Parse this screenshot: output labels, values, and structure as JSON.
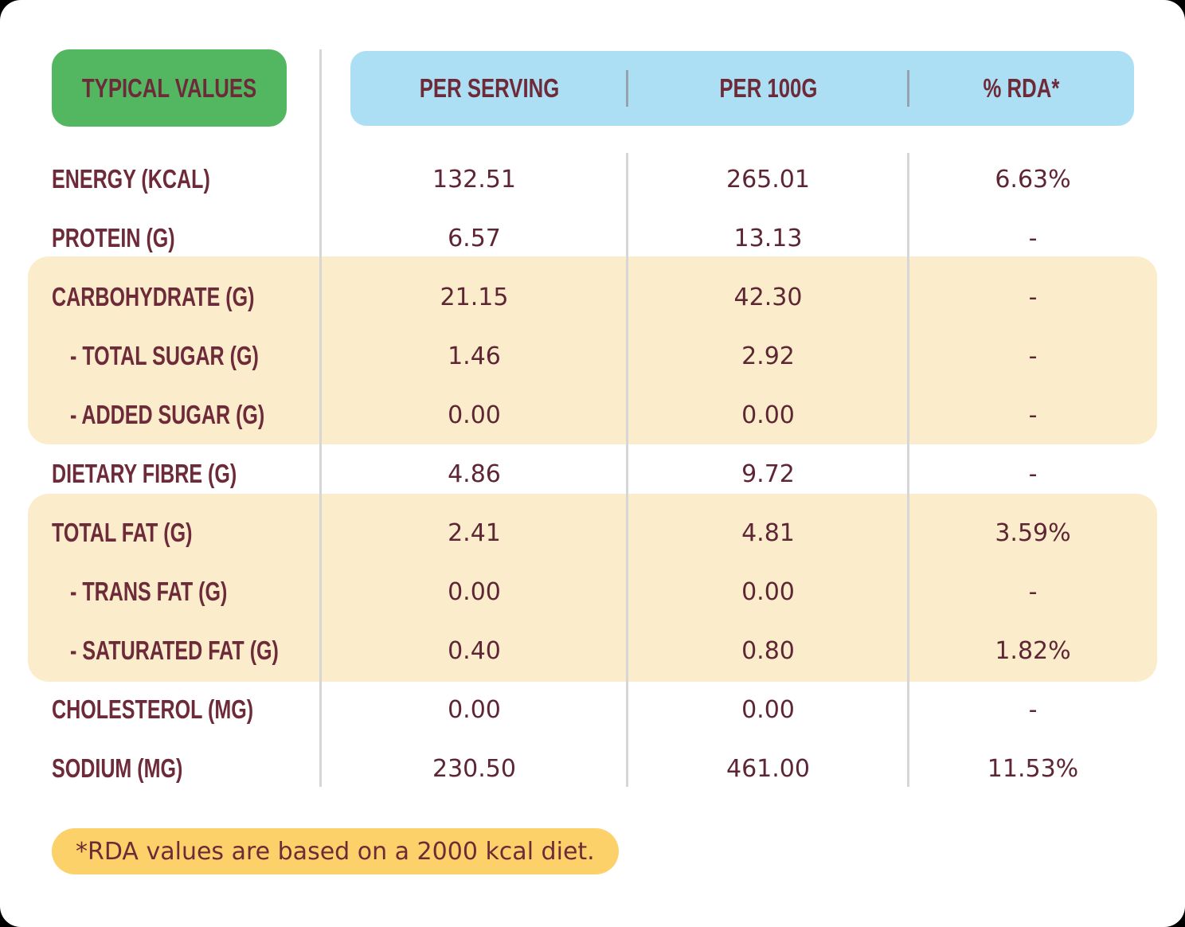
{
  "header": {
    "typical_values_label": "TYPICAL VALUES",
    "columns": [
      "PER SERVING",
      "PER 100G",
      "% RDA*"
    ]
  },
  "rows": [
    {
      "label": "ENERGY (KCAL)",
      "indent": false,
      "per_serving": "132.51",
      "per_100g": "265.01",
      "rda": "6.63%"
    },
    {
      "label": "PROTEIN (G)",
      "indent": false,
      "per_serving": "6.57",
      "per_100g": "13.13",
      "rda": "-"
    },
    {
      "label": "CARBOHYDRATE (G)",
      "indent": false,
      "per_serving": "21.15",
      "per_100g": "42.30",
      "rda": "-"
    },
    {
      "label": "- TOTAL SUGAR (G)",
      "indent": true,
      "per_serving": "1.46",
      "per_100g": "2.92",
      "rda": "-"
    },
    {
      "label": "- ADDED SUGAR (G)",
      "indent": true,
      "per_serving": "0.00",
      "per_100g": "0.00",
      "rda": "-"
    },
    {
      "label": "DIETARY FIBRE (G)",
      "indent": false,
      "per_serving": "4.86",
      "per_100g": "9.72",
      "rda": "-"
    },
    {
      "label": "TOTAL FAT (G)",
      "indent": false,
      "per_serving": "2.41",
      "per_100g": "4.81",
      "rda": "3.59%"
    },
    {
      "label": "- TRANS FAT (G)",
      "indent": true,
      "per_serving": "0.00",
      "per_100g": "0.00",
      "rda": "-"
    },
    {
      "label": "- SATURATED FAT (G)",
      "indent": true,
      "per_serving": "0.40",
      "per_100g": "0.80",
      "rda": "1.82%"
    },
    {
      "label": "CHOLESTEROL (MG)",
      "indent": false,
      "per_serving": "0.00",
      "per_100g": "0.00",
      "rda": "-"
    },
    {
      "label": "SODIUM (MG)",
      "indent": false,
      "per_serving": "230.50",
      "per_100g": "461.00",
      "rda": "11.53%"
    }
  ],
  "footnote": "*RDA values are based on a 2000 kcal diet.",
  "colors": {
    "badge_green": "#53b761",
    "header_blue": "#addff4",
    "highlight_cream": "#fbeccb",
    "footnote_yellow": "#fcd169",
    "text_maroon": "#6d2a39",
    "value_maroon": "#5e2634",
    "divider_gray": "#d6d6d6"
  }
}
